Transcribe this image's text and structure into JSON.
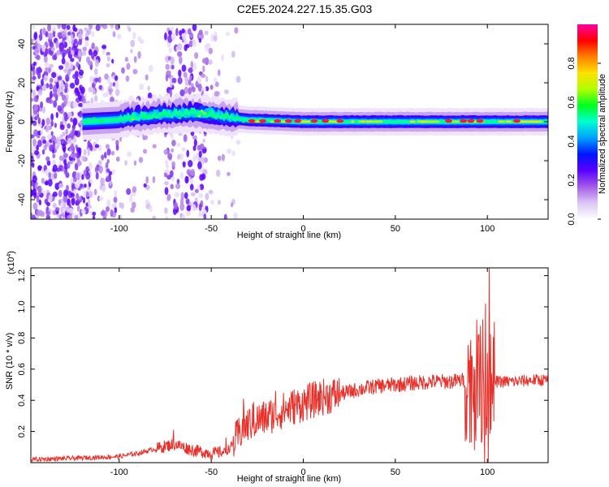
{
  "title": "C2E5.2024.227.15.35.G03",
  "chart_data": [
    {
      "type": "heatmap",
      "xlabel": "Height of straight line (km)",
      "ylabel": "Frequency (Hz)",
      "xlim": [
        -148,
        133
      ],
      "ylim": [
        -50,
        50
      ],
      "x_ticks": [
        -100,
        -50,
        0,
        50,
        100
      ],
      "x_tick_labels": [
        "-100",
        "-50",
        "0",
        "50",
        "100"
      ],
      "y_ticks": [
        -40,
        -20,
        0,
        20,
        40
      ],
      "y_tick_labels": [
        "-40",
        "-20",
        "0",
        "20",
        "40"
      ],
      "colorbar": {
        "label": "Normalized spectral amplitude",
        "range": [
          0,
          1
        ],
        "ticks": [
          0.0,
          0.2,
          0.4,
          0.6,
          0.8
        ],
        "tick_labels": [
          "0.0",
          "0.2",
          "0.4",
          "0.6",
          "0.8"
        ],
        "colors": [
          "#ffffff",
          "#dcc6f5",
          "#a35be8",
          "#5a00ff",
          "#0015ff",
          "#00a0ff",
          "#00ffd0",
          "#00ff20",
          "#b0ff00",
          "#ffe000",
          "#ff8000",
          "#ff0000",
          "#ff00a0"
        ]
      },
      "centerline_freq": [
        {
          "x": -145,
          "y": 0
        },
        {
          "x": -120,
          "y": 0
        },
        {
          "x": -100,
          "y": 1
        },
        {
          "x": -80,
          "y": 3
        },
        {
          "x": -60,
          "y": 4
        },
        {
          "x": -50,
          "y": 3
        },
        {
          "x": -40,
          "y": 2
        },
        {
          "x": -30,
          "y": 1
        },
        {
          "x": 0,
          "y": 0
        },
        {
          "x": 50,
          "y": 0
        },
        {
          "x": 100,
          "y": 0
        },
        {
          "x": 133,
          "y": 0
        }
      ],
      "hotspots_x": [
        -28,
        -22,
        -14,
        -8,
        -3,
        6,
        12,
        20,
        79,
        87,
        91,
        96,
        116
      ]
    },
    {
      "type": "line",
      "xlabel": "Height of straight line (km)",
      "ylabel": "SNR (10 * v/v)",
      "y_scale_label": "(x10",
      "y_scale_exponent": "4",
      "xlim": [
        -148,
        133
      ],
      "ylim": [
        0,
        1.25
      ],
      "x_ticks": [
        -100,
        -50,
        0,
        50,
        100
      ],
      "x_tick_labels": [
        "-100",
        "-50",
        "0",
        "50",
        "100"
      ],
      "y_ticks": [
        0.2,
        0.4,
        0.6,
        0.8,
        1.0,
        1.2
      ],
      "y_tick_labels": [
        "0.2",
        "0.4",
        "0.6",
        "0.8",
        "1.0",
        "1.2"
      ],
      "series": [
        {
          "color": "#e8302a",
          "points": [
            {
              "x": -148,
              "y": 0.02
            },
            {
              "x": -120,
              "y": 0.03
            },
            {
              "x": -100,
              "y": 0.04
            },
            {
              "x": -90,
              "y": 0.06
            },
            {
              "x": -80,
              "y": 0.09
            },
            {
              "x": -70,
              "y": 0.12
            },
            {
              "x": -60,
              "y": 0.08
            },
            {
              "x": -50,
              "y": 0.06
            },
            {
              "x": -42,
              "y": 0.07
            },
            {
              "x": -38,
              "y": 0.12
            },
            {
              "x": -33,
              "y": 0.22
            },
            {
              "x": -28,
              "y": 0.26
            },
            {
              "x": -20,
              "y": 0.29
            },
            {
              "x": -10,
              "y": 0.34
            },
            {
              "x": 0,
              "y": 0.38
            },
            {
              "x": 10,
              "y": 0.42
            },
            {
              "x": 20,
              "y": 0.44
            },
            {
              "x": 30,
              "y": 0.47
            },
            {
              "x": 40,
              "y": 0.49
            },
            {
              "x": 50,
              "y": 0.5
            },
            {
              "x": 60,
              "y": 0.51
            },
            {
              "x": 70,
              "y": 0.52
            },
            {
              "x": 80,
              "y": 0.52
            },
            {
              "x": 88,
              "y": 0.53
            },
            {
              "x": 95,
              "y": 0.52
            },
            {
              "x": 100,
              "y": 0.52
            },
            {
              "x": 105,
              "y": 0.52
            },
            {
              "x": 115,
              "y": 0.52
            },
            {
              "x": 125,
              "y": 0.53
            },
            {
              "x": 133,
              "y": 0.53
            }
          ],
          "peaks": [
            {
              "x": -70.5,
              "y": 0.21
            },
            {
              "x": -42,
              "y": 0.16
            },
            {
              "x": -32.5,
              "y": 0.41
            },
            {
              "x": -27,
              "y": 0.39
            },
            {
              "x": -15,
              "y": 0.46
            },
            {
              "x": -5,
              "y": 0.47
            },
            {
              "x": 10,
              "y": 0.46
            },
            {
              "x": 95,
              "y": 0.82
            },
            {
              "x": 97.5,
              "y": 0.92
            },
            {
              "x": 99,
              "y": 1.02
            },
            {
              "x": 101,
              "y": 1.27
            }
          ],
          "dips": [
            {
              "x": 93,
              "y": 0.08
            },
            {
              "x": 98.5,
              "y": 0.0
            },
            {
              "x": 100.5,
              "y": 0.0
            },
            {
              "x": 102,
              "y": 0.21
            }
          ]
        }
      ]
    }
  ]
}
